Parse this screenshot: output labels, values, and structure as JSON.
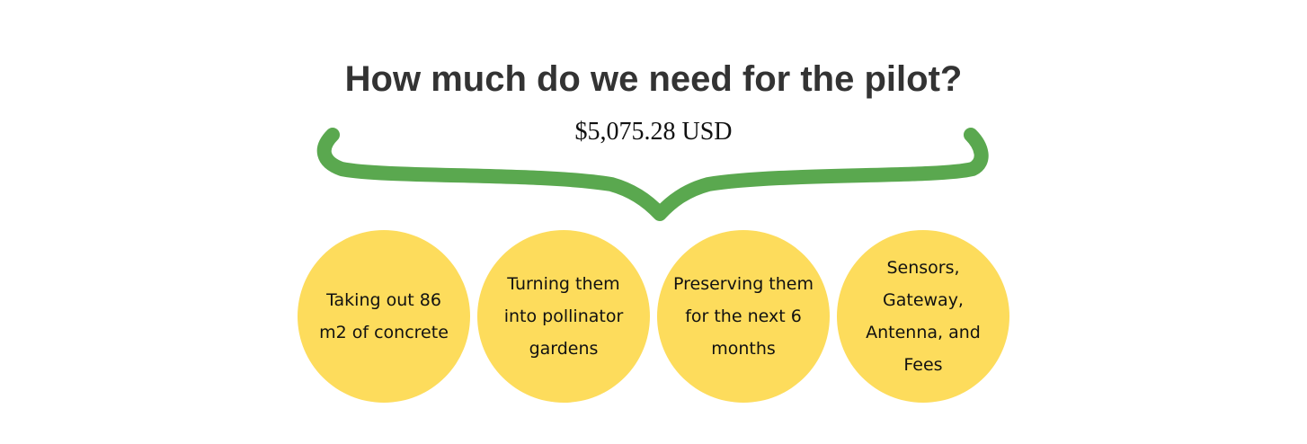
{
  "title": "How much do we need for the pilot?",
  "amount": "$5,075.28 USD",
  "items": [
    {
      "label": "Taking out 86 m2 of concrete"
    },
    {
      "label": "Turning them into pollinator gardens"
    },
    {
      "label": "Preserving them for the next 6 months"
    },
    {
      "label": "Sensors, Gateway, Antenna, and Fees"
    }
  ],
  "colors": {
    "brace": "#5aa84f",
    "circle": "#fddc5c",
    "title": "#333333"
  }
}
